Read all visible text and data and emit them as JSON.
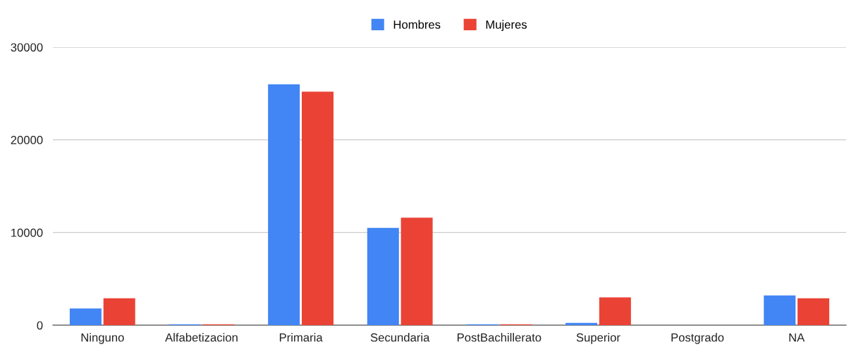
{
  "chart_data": {
    "type": "bar",
    "categories": [
      "Ninguno",
      "Alfabetizacion",
      "Primaria",
      "Secundaria",
      "PostBachillerato",
      "Superior",
      "Postgrado",
      "NA"
    ],
    "series": [
      {
        "name": "Hombres",
        "color": "#4285f4",
        "values": [
          1800,
          100,
          26000,
          10500,
          100,
          250,
          0,
          3200
        ]
      },
      {
        "name": "Mujeres",
        "color": "#ea4335",
        "values": [
          2900,
          100,
          25200,
          11600,
          100,
          3000,
          0,
          2900
        ]
      }
    ],
    "ylim": [
      0,
      30000
    ],
    "yticks": [
      0,
      10000,
      20000,
      30000
    ],
    "grid": "y",
    "legend": "top"
  }
}
